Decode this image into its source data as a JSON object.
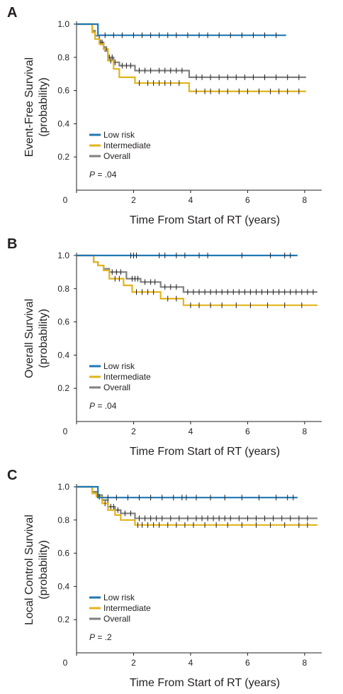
{
  "colors": {
    "low_risk": "#1f78b4",
    "intermediate": "#e2b41c",
    "overall": "#808080",
    "censor": "#231f20",
    "axis": "#231f20"
  },
  "chart_data": [
    {
      "type": "line",
      "step": true,
      "panel_label": "A",
      "title": "",
      "xlabel": "Time From Start of RT (years)",
      "ylabel": "Event-Free Survival",
      "ylabel_sub": "(probability)",
      "xlim": [
        0,
        8.6
      ],
      "ylim": [
        0,
        1.0
      ],
      "xticks": [
        0,
        2,
        4,
        6,
        8
      ],
      "xtick_labels": [
        "0",
        "2",
        "4",
        "6",
        "8"
      ],
      "yticks": [
        0.2,
        0.4,
        0.6,
        0.8,
        1.0
      ],
      "ytick_labels": [
        "0.2",
        "0.4",
        "0.6",
        "0.8",
        "1.0"
      ],
      "legend_position": "bottom-left",
      "p_prefix": "P",
      "p_value": " = .04",
      "series": [
        {
          "name": "Low risk",
          "color_key": "low_risk",
          "x": [
            0.45,
            0.75,
            7.35
          ],
          "y": [
            1.0,
            0.933,
            0.933
          ],
          "censor_x": [
            1.0,
            1.3,
            1.6,
            2.0,
            2.3,
            2.6,
            2.9,
            3.2,
            3.5,
            3.9,
            4.3,
            4.6,
            5.0,
            5.4,
            5.8,
            6.2,
            6.6,
            7.0
          ]
        },
        {
          "name": "Intermediate",
          "color_key": "intermediate",
          "x": [
            0.45,
            0.55,
            0.65,
            0.8,
            0.95,
            1.1,
            1.3,
            1.5,
            2.05,
            3.95,
            8.05
          ],
          "y": [
            1.0,
            0.95,
            0.91,
            0.88,
            0.85,
            0.78,
            0.73,
            0.68,
            0.645,
            0.595,
            0.595
          ],
          "censor_x": [
            1.05,
            1.2,
            2.2,
            2.5,
            2.7,
            2.9,
            3.1,
            3.3,
            3.6,
            4.2,
            4.5,
            4.7,
            5.0,
            5.3,
            5.7,
            6.0,
            6.4,
            6.8,
            7.1,
            7.4,
            7.8
          ]
        },
        {
          "name": "Overall",
          "color_key": "overall",
          "x": [
            0.45,
            0.55,
            0.65,
            0.8,
            0.95,
            1.1,
            1.3,
            1.5,
            2.05,
            3.95,
            8.05
          ],
          "y": [
            1.0,
            0.96,
            0.93,
            0.89,
            0.85,
            0.8,
            0.77,
            0.75,
            0.72,
            0.68,
            0.68
          ],
          "censor_x": [
            0.85,
            0.9,
            1.0,
            1.15,
            1.25,
            1.35,
            1.6,
            1.75,
            1.9,
            2.2,
            2.4,
            2.6,
            2.9,
            3.1,
            3.3,
            3.5,
            3.7,
            4.2,
            4.4,
            4.7,
            5.0,
            5.3,
            5.6,
            5.9,
            6.2,
            6.6,
            7.0,
            7.4,
            7.8
          ]
        }
      ],
      "legend": [
        {
          "label": "Low risk",
          "color_key": "low_risk"
        },
        {
          "label": "Intermediate",
          "color_key": "intermediate"
        },
        {
          "label": "Overall",
          "color_key": "overall"
        }
      ]
    },
    {
      "type": "line",
      "step": true,
      "panel_label": "B",
      "title": "",
      "xlabel": "Time From Start of RT (years)",
      "ylabel": "Overall Survival",
      "ylabel_sub": "(probability)",
      "xlim": [
        0,
        8.6
      ],
      "ylim": [
        0,
        1.0
      ],
      "xticks": [
        0,
        2,
        4,
        6,
        8
      ],
      "xtick_labels": [
        "0",
        "2",
        "4",
        "6",
        "8"
      ],
      "yticks": [
        0.2,
        0.4,
        0.6,
        0.8,
        1.0
      ],
      "ytick_labels": [
        "0.2",
        "0.4",
        "0.6",
        "0.8",
        "1.0"
      ],
      "legend_position": "bottom-left",
      "p_prefix": "P",
      "p_value": " = .04",
      "series": [
        {
          "name": "Low risk",
          "color_key": "low_risk",
          "x": [
            0.45,
            7.75
          ],
          "y": [
            1.0,
            1.0
          ],
          "censor_x": [
            1.9,
            2.0,
            2.1,
            2.9,
            3.1,
            3.5,
            3.8,
            4.3,
            4.6,
            5.8,
            6.8,
            7.3,
            7.5
          ]
        },
        {
          "name": "Intermediate",
          "color_key": "intermediate",
          "x": [
            0.45,
            0.6,
            0.75,
            0.95,
            1.15,
            1.65,
            1.95,
            2.95,
            3.75,
            8.45
          ],
          "y": [
            1.0,
            0.96,
            0.94,
            0.91,
            0.86,
            0.82,
            0.78,
            0.74,
            0.7,
            0.7
          ],
          "censor_x": [
            1.35,
            1.5,
            2.1,
            2.3,
            2.5,
            2.7,
            3.2,
            3.5,
            4.0,
            4.3,
            4.7,
            5.1,
            5.6,
            6.1,
            6.7,
            7.3,
            7.9
          ]
        },
        {
          "name": "Overall",
          "color_key": "overall",
          "x": [
            0.45,
            0.6,
            0.75,
            0.95,
            1.15,
            1.75,
            2.25,
            2.95,
            3.75,
            8.45
          ],
          "y": [
            1.0,
            0.96,
            0.94,
            0.92,
            0.9,
            0.86,
            0.84,
            0.81,
            0.78,
            0.78
          ],
          "censor_x": [
            1.25,
            1.4,
            1.55,
            1.95,
            2.05,
            2.15,
            2.4,
            2.6,
            2.75,
            3.1,
            3.3,
            3.5,
            3.9,
            4.1,
            4.3,
            4.5,
            4.7,
            4.9,
            5.1,
            5.3,
            5.5,
            5.7,
            5.9,
            6.1,
            6.3,
            6.5,
            6.7,
            6.9,
            7.1,
            7.3,
            7.5,
            7.7,
            7.9,
            8.1,
            8.3
          ]
        }
      ],
      "legend": [
        {
          "label": "Low risk",
          "color_key": "low_risk"
        },
        {
          "label": "Intermediate",
          "color_key": "intermediate"
        },
        {
          "label": "Overall",
          "color_key": "overall"
        }
      ]
    },
    {
      "type": "line",
      "step": true,
      "panel_label": "C",
      "title": "",
      "xlabel": "Time From Start of RT (years)",
      "ylabel": "Local Control Survival",
      "ylabel_sub": "(probability)",
      "xlim": [
        0,
        8.6
      ],
      "ylim": [
        0,
        1.0
      ],
      "xticks": [
        0,
        2,
        4,
        6,
        8
      ],
      "xtick_labels": [
        "0",
        "2",
        "4",
        "6",
        "8"
      ],
      "yticks": [
        0.2,
        0.4,
        0.6,
        0.8,
        1.0
      ],
      "ytick_labels": [
        "0.2",
        "0.4",
        "0.6",
        "0.8",
        "1.0"
      ],
      "legend_position": "bottom-left",
      "p_prefix": "P",
      "p_value": " = .2",
      "series": [
        {
          "name": "Low risk",
          "color_key": "low_risk",
          "x": [
            0.45,
            0.75,
            7.75
          ],
          "y": [
            1.0,
            0.935,
            0.935
          ],
          "censor_x": [
            1.1,
            1.4,
            1.8,
            2.2,
            2.6,
            3.0,
            3.4,
            3.7,
            3.85,
            4.2,
            4.7,
            5.2,
            5.8,
            6.4,
            7.0,
            7.4,
            7.6
          ]
        },
        {
          "name": "Intermediate",
          "color_key": "intermediate",
          "x": [
            0.45,
            0.55,
            0.7,
            0.9,
            1.1,
            1.35,
            1.55,
            2.05,
            8.45
          ],
          "y": [
            1.0,
            0.96,
            0.94,
            0.9,
            0.86,
            0.83,
            0.8,
            0.77,
            0.77
          ],
          "censor_x": [
            0.8,
            1.0,
            2.15,
            2.3,
            2.5,
            2.7,
            2.9,
            3.2,
            3.5,
            3.8,
            4.1,
            4.5,
            4.9,
            5.3,
            5.8,
            6.3,
            6.8,
            7.3,
            7.8,
            8.1
          ]
        },
        {
          "name": "Overall",
          "color_key": "overall",
          "x": [
            0.45,
            0.55,
            0.7,
            0.9,
            1.1,
            1.35,
            1.55,
            2.05,
            8.45
          ],
          "y": [
            1.0,
            0.97,
            0.95,
            0.92,
            0.88,
            0.86,
            0.84,
            0.81,
            0.81
          ],
          "censor_x": [
            1.2,
            1.3,
            1.45,
            1.7,
            1.9,
            2.2,
            2.4,
            2.6,
            2.8,
            3.0,
            3.3,
            3.6,
            3.9,
            4.2,
            4.4,
            4.6,
            4.8,
            5.0,
            5.2,
            5.4,
            5.7,
            6.0,
            6.3,
            6.6,
            6.9,
            7.2,
            7.5,
            7.8,
            8.1
          ]
        }
      ],
      "legend": [
        {
          "label": "Low risk",
          "color_key": "low_risk"
        },
        {
          "label": "Intermediate",
          "color_key": "intermediate"
        },
        {
          "label": "Overall",
          "color_key": "overall"
        }
      ]
    }
  ]
}
